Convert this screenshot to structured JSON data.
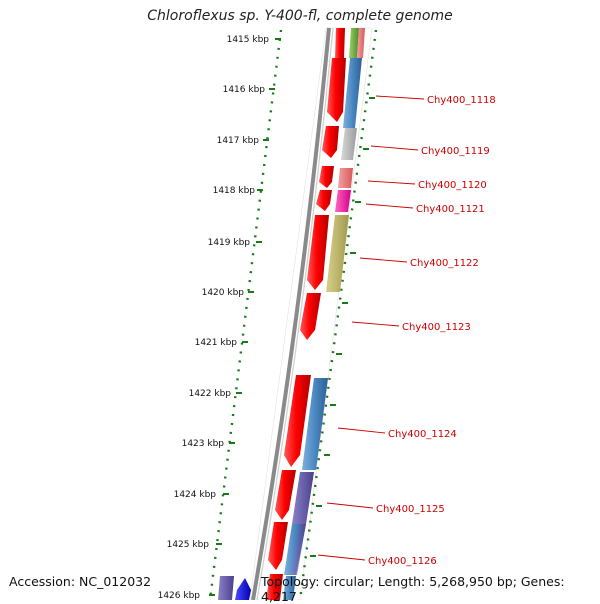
{
  "title": "Chloroflexus sp. Y-400-fl, complete genome",
  "footer": {
    "accession": "Accession: NC_012032",
    "topology": "Topology: circular; Length: 5,268,950 bp; Genes: 4,217"
  },
  "ruler_labels": [
    "1415 kbp",
    "1416 kbp",
    "1417 kbp",
    "1418 kbp",
    "1419 kbp",
    "1420 kbp",
    "1421 kbp",
    "1422 kbp",
    "1423 kbp",
    "1424 kbp",
    "1425 kbp",
    "1426 kbp"
  ],
  "genes": [
    {
      "label": "Chy400_1118"
    },
    {
      "label": "Chy400_1119"
    },
    {
      "label": "Chy400_1120"
    },
    {
      "label": "Chy400_1121"
    },
    {
      "label": "Chy400_1122"
    },
    {
      "label": "Chy400_1123"
    },
    {
      "label": "Chy400_1124"
    },
    {
      "label": "Chy400_1125"
    },
    {
      "label": "Chy400_1126"
    }
  ],
  "colors": {
    "cds_forward": "#ff0000",
    "backbone": "#888888",
    "ruler_dots": "#1a7a1a",
    "label": "#cc0000"
  }
}
